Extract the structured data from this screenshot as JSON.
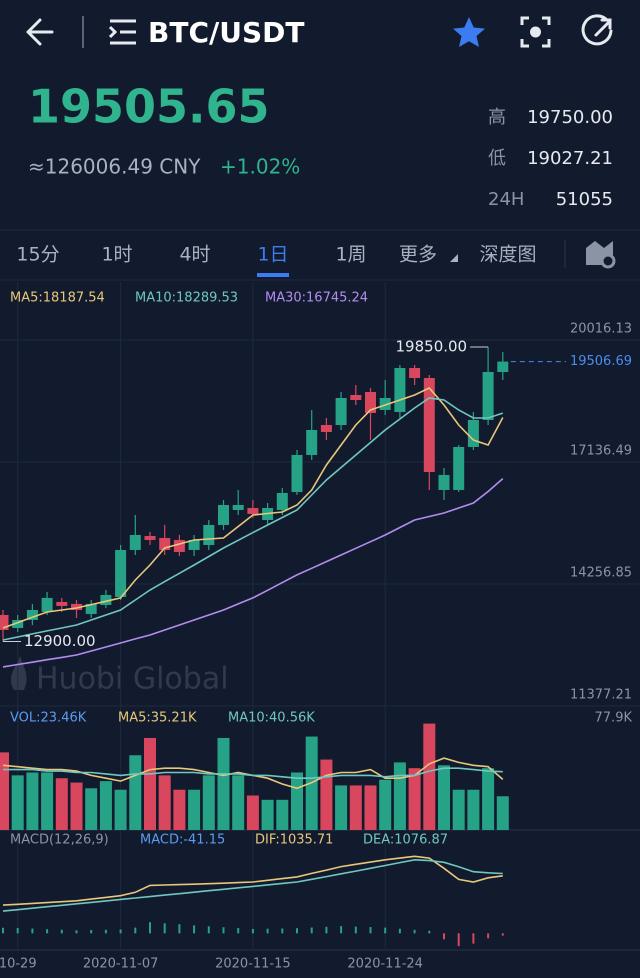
{
  "header": {
    "title": "BTC/USDT"
  },
  "ticker": {
    "price": "19505.65",
    "cny": "≈126006.49 CNY",
    "change": "+1.02%",
    "stats": [
      {
        "label": "高",
        "value": "19750.00"
      },
      {
        "label": "低",
        "value": "19027.21"
      },
      {
        "label": "24H",
        "value": "51055"
      }
    ]
  },
  "tabs": [
    "15分",
    "1时",
    "4时",
    "1日",
    "1周",
    "更多",
    "深度图"
  ],
  "active_tab": 3,
  "chart_data": [
    {
      "type": "candlestick",
      "watermark": "Huobi Global",
      "up_color": "#26a387",
      "down_color": "#d8475e",
      "categories": [
        null,
        "10-29",
        null,
        null,
        null,
        null,
        null,
        null,
        "2020-11-07",
        null,
        null,
        null,
        null,
        null,
        null,
        null,
        null,
        "2020-11-15",
        null,
        null,
        null,
        null,
        null,
        null,
        null,
        null,
        "2020-11-24",
        null,
        null,
        null,
        null,
        null,
        null,
        null,
        null
      ],
      "open": [
        13526,
        13219,
        13408,
        13597,
        13833,
        13786,
        13550,
        13762,
        13951,
        15060,
        15390,
        15343,
        15296,
        15060,
        15178,
        15650,
        16004,
        16051,
        15768,
        16004,
        16429,
        17302,
        18010,
        18010,
        18718,
        18789,
        18364,
        18317,
        19355,
        19119,
        16476,
        16476,
        17491,
        18128,
        19261
      ],
      "high": [
        13644,
        13526,
        13786,
        14069,
        13928,
        13880,
        13880,
        14116,
        15178,
        15886,
        15485,
        15650,
        15414,
        15414,
        15768,
        16240,
        16476,
        16240,
        16169,
        16523,
        17420,
        18364,
        18175,
        18789,
        18954,
        18883,
        19072,
        19426,
        19426,
        19190,
        16995,
        17538,
        18317,
        19850,
        19733
      ],
      "low": [
        12900,
        13125,
        13290,
        13526,
        13597,
        13455,
        13455,
        13691,
        13880,
        14942,
        15178,
        14942,
        14918,
        14918,
        15060,
        15532,
        15886,
        15815,
        15674,
        15886,
        16358,
        17184,
        17656,
        17892,
        18482,
        17656,
        18246,
        18175,
        18954,
        16476,
        16240,
        16429,
        17420,
        18010,
        19072
      ],
      "close": [
        13172,
        13408,
        13644,
        13928,
        13739,
        13644,
        13786,
        13998,
        15060,
        15414,
        15296,
        15060,
        15013,
        15296,
        15650,
        16122,
        16122,
        15910,
        16051,
        16405,
        17302,
        17892,
        17845,
        18647,
        18600,
        18293,
        18647,
        19355,
        19119,
        16901,
        16830,
        17491,
        18128,
        19261,
        19506.69
      ],
      "series": [
        {
          "name": "MA5:18187.54",
          "color": "#e8c77a",
          "values": [
            13219,
            13345,
            13471,
            13597,
            13644,
            13691,
            13770,
            13849,
            13928,
            14352,
            14706,
            15107,
            15202,
            15296,
            15320,
            15343,
            15615,
            15886,
            15922,
            15957,
            16122,
            16476,
            17066,
            17538,
            18010,
            18364,
            18482,
            18600,
            18718,
            18883,
            18482,
            18010,
            17656,
            17538,
            18187
          ]
        },
        {
          "name": "MA10:18289.53",
          "color": "#6fc7c0",
          "values": [
            12936,
            13007,
            13078,
            13149,
            13219,
            13290,
            13408,
            13526,
            13644,
            13880,
            14116,
            14313,
            14510,
            14706,
            14907,
            15107,
            15288,
            15469,
            15650,
            15827,
            16004,
            16358,
            16712,
            17007,
            17302,
            17597,
            17892,
            18152,
            18411,
            18647,
            18600,
            18364,
            18175,
            18175,
            18290
          ]
        },
        {
          "name": "MA30:16745.24",
          "color": "#b48cf0",
          "values": [
            12299,
            12356,
            12412,
            12469,
            12525,
            12582,
            12676,
            12770,
            12865,
            12960,
            13054,
            13172,
            13290,
            13408,
            13526,
            13644,
            13786,
            13928,
            14109,
            14290,
            14471,
            14628,
            14785,
            14942,
            15099,
            15256,
            15414,
            15591,
            15768,
            15850,
            15933,
            16051,
            16169,
            16440,
            16745
          ]
        }
      ],
      "ylim": [
        11377.21,
        20016.13
      ],
      "yticks": [
        20016.13,
        17136.49,
        14256.85,
        11377.21
      ],
      "grid": true,
      "last_price": 19506.69,
      "last_price_color": "#4a8df0",
      "annotations": [
        {
          "value": 19850,
          "label": "19850.00"
        },
        {
          "value": 12900,
          "label": "12900.00"
        }
      ]
    },
    {
      "type": "bar",
      "title": "VOL:23.46K",
      "title_color": "#5b9bf0",
      "values": [
        54,
        38,
        40,
        40,
        36,
        33,
        29,
        34,
        28,
        52,
        64,
        38,
        28,
        28,
        38,
        64,
        38,
        24,
        21,
        21,
        40,
        65,
        49,
        31,
        31,
        31,
        35,
        47,
        43,
        74,
        45,
        28,
        28,
        43,
        23.46
      ],
      "series": [
        {
          "name": "MA5:35.21K",
          "color": "#e8c77a",
          "values": [
            45,
            44,
            43,
            42,
            42,
            41,
            38,
            36,
            34,
            38,
            42,
            43,
            43,
            42,
            40,
            38,
            40,
            38,
            36,
            32,
            29,
            33,
            38,
            40,
            40,
            42,
            36,
            36,
            38,
            46,
            50,
            47,
            45,
            44,
            35.21
          ]
        },
        {
          "name": "MA10:40.56K",
          "color": "#6fc7c0",
          "values": [
            42,
            42,
            42,
            41,
            41,
            40,
            40,
            39,
            38,
            39,
            39,
            40,
            40,
            40,
            39,
            39,
            39,
            38,
            38,
            37,
            36,
            36,
            37,
            38,
            38,
            38,
            37,
            38,
            38,
            41,
            43,
            43,
            42,
            41,
            40.56
          ]
        }
      ],
      "ylim": [
        0,
        77.9
      ],
      "yticks": [
        {
          "value": 77.9,
          "label": "77.9K"
        }
      ]
    },
    {
      "type": "macd",
      "title": "MACD(12,26,9)",
      "values_name": "MACD:-41.15",
      "values_name_color": "#5b9bf0",
      "values": [
        100,
        97,
        87,
        75,
        65,
        54,
        59,
        64,
        68,
        103,
        200,
        182,
        164,
        144,
        126,
        110,
        95,
        79,
        83,
        87,
        92,
        105,
        117,
        129,
        121,
        113,
        103,
        82,
        62,
        45,
        -108,
        -230,
        -185,
        -90,
        -41.15
      ],
      "series": [
        {
          "name": "DIF:1035.71",
          "color": "#e8c77a",
          "values": [
            508,
            523,
            539,
            554,
            570,
            585,
            616,
            647,
            678,
            739,
            862,
            870,
            878,
            885,
            893,
            903,
            914,
            924,
            955,
            985,
            1016,
            1078,
            1139,
            1201,
            1242,
            1283,
            1324,
            1355,
            1386,
            1355,
            1170,
            970,
            924,
            1000,
            1035.71
          ]
        },
        {
          "name": "DEA:1076.87",
          "color": "#6fc7c0",
          "values": [
            400,
            426,
            452,
            479,
            505,
            531,
            557,
            583,
            610,
            636,
            662,
            688,
            714,
            741,
            767,
            793,
            819,
            845,
            872,
            898,
            924,
            973,
            1022,
            1072,
            1121,
            1170,
            1221,
            1273,
            1324,
            1310,
            1278,
            1200,
            1109,
            1090,
            1076.87
          ]
        }
      ],
      "ylim": [
        -300,
        1500
      ]
    }
  ]
}
